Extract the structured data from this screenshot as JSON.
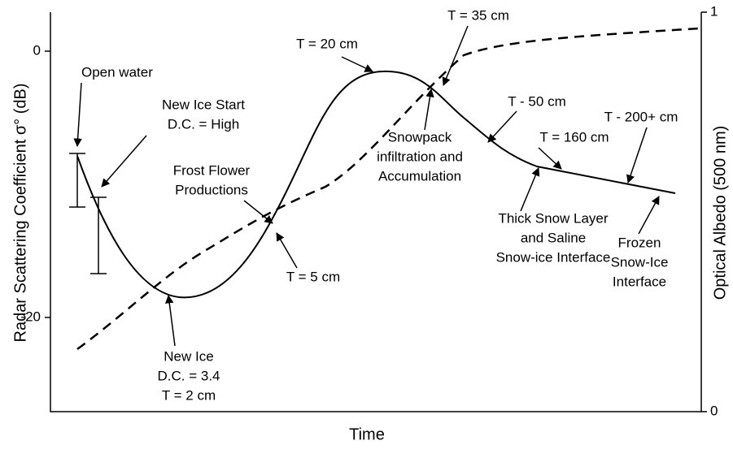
{
  "axes": {
    "y_label": "Radar Scattering Coefficient σ° (dB)",
    "y2_label": "Optical Albedo (500 nm)",
    "x_label": "Time",
    "y_ticks": [
      "0",
      "-20"
    ],
    "y2_ticks": [
      "1",
      "0"
    ]
  },
  "annotations": [
    {
      "lines": [
        "Open water"
      ]
    },
    {
      "lines": [
        "New Ice Start",
        "D.C. = High"
      ]
    },
    {
      "lines": [
        "Frost Flower",
        "Productions"
      ]
    },
    {
      "lines": [
        "T = 20 cm"
      ]
    },
    {
      "lines": [
        "T = 35 cm"
      ]
    },
    {
      "lines": [
        "Snowpack",
        "infiltration and",
        "Accumulation"
      ]
    },
    {
      "lines": [
        "T - 50 cm"
      ]
    },
    {
      "lines": [
        "T = 160 cm"
      ]
    },
    {
      "lines": [
        "T - 200+ cm"
      ]
    },
    {
      "lines": [
        "Thick Snow Layer",
        "and Saline",
        "Snow-ice Interface"
      ]
    },
    {
      "lines": [
        "T = 5 cm"
      ]
    },
    {
      "lines": [
        "New Ice",
        "D.C. = 3.4",
        "T = 2 cm"
      ]
    },
    {
      "lines": [
        "Frozen",
        "Snow-Ice",
        "Interface"
      ]
    }
  ]
}
